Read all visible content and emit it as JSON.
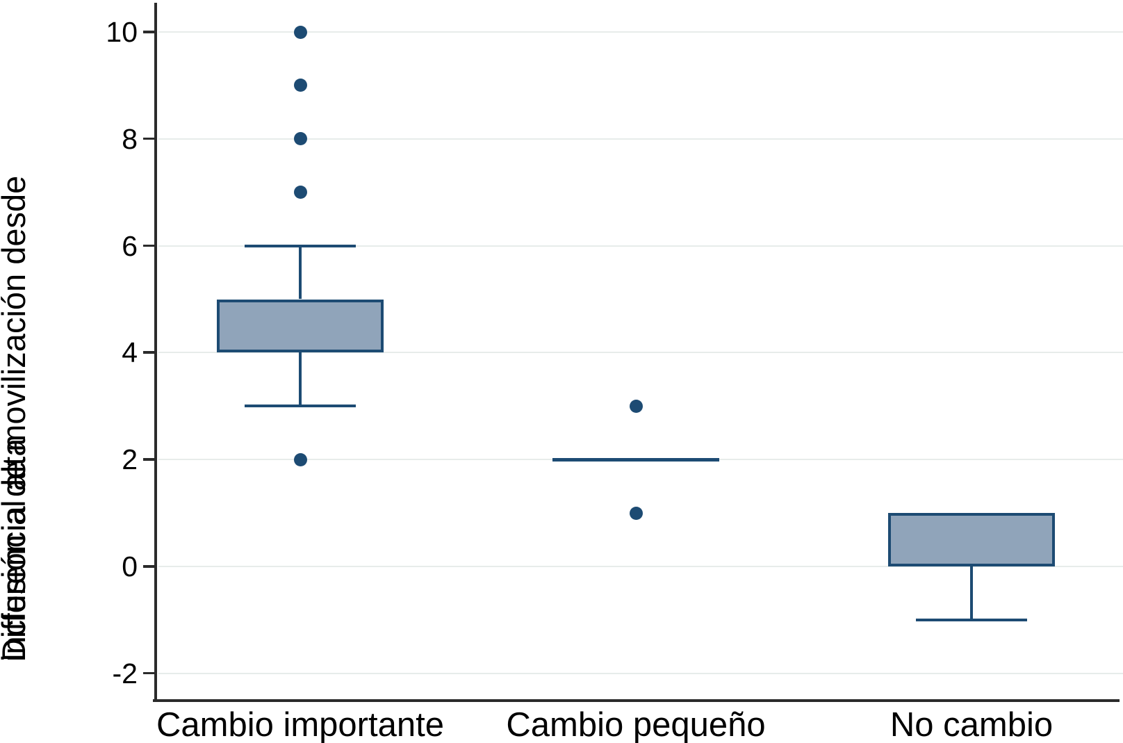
{
  "chart_data": {
    "type": "boxplot",
    "orientation": "vertical",
    "ylabel_lines": [
      "Differencia de movilización desde",
      "inclusión al alta"
    ],
    "yticks": [
      10,
      8,
      6,
      4,
      2,
      0,
      -2
    ],
    "ylim": [
      -2.7,
      10.6
    ],
    "grid": "horizontal",
    "legend": "none",
    "categories": [
      "Cambio importante",
      "Cambio pequeño",
      "No cambio"
    ],
    "groups": [
      {
        "label": "Cambio importante",
        "q1": 4,
        "q3": 5,
        "whisker_low": 3,
        "whisker_high": 6,
        "outliers": [
          10,
          9,
          8,
          7,
          2
        ]
      },
      {
        "label": "Cambio pequeño",
        "median": 2,
        "outliers": [
          3,
          1
        ]
      },
      {
        "label": "No cambio",
        "q1": 0,
        "q3": 1,
        "whisker_low": -1,
        "outliers": []
      }
    ],
    "colors": {
      "box_fill": "#90a4ba",
      "box_stroke": "#1d4b73",
      "outlier_dot": "#1d4b73",
      "median_line": "#1d4b73",
      "gridline": "#e7ecea",
      "axis": "#2b2b2b",
      "text": "#000000"
    }
  }
}
